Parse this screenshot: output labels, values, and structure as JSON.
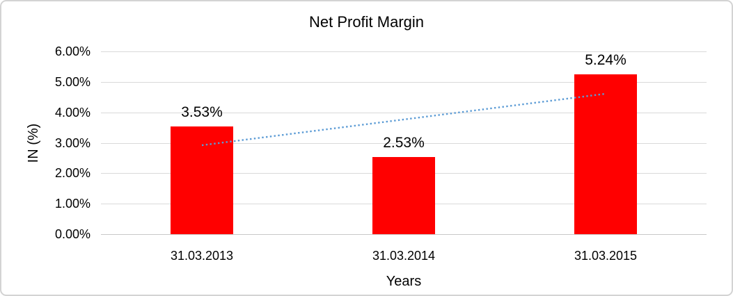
{
  "window": {
    "background_color": "#ffffff",
    "border_color": "#d3d3d3"
  },
  "chart_data": {
    "type": "bar",
    "title": "Net Profit Margin",
    "xlabel": "Years",
    "ylabel": "IN (%)",
    "categories": [
      "31.03.2013",
      "31.03.2014",
      "31.03.2015"
    ],
    "values": [
      3.53,
      2.53,
      5.24
    ],
    "data_labels": [
      "3.53%",
      "2.53%",
      "5.24%"
    ],
    "y_tick_labels": [
      "6.00%",
      "5.00%",
      "4.00%",
      "3.00%",
      "2.00%",
      "1.00%",
      "0.00%"
    ],
    "ylim": [
      0,
      6
    ],
    "grid": true,
    "legend": false,
    "bar_color": "#ff0000",
    "gridline_color": "#d9d9d9",
    "axis_line_color": "#c8c8c8",
    "text_color": "#000000",
    "trendline": {
      "type": "linear",
      "style": "dotted",
      "color": "#5b9bd5",
      "start_value": 2.92,
      "end_value": 4.61
    }
  }
}
